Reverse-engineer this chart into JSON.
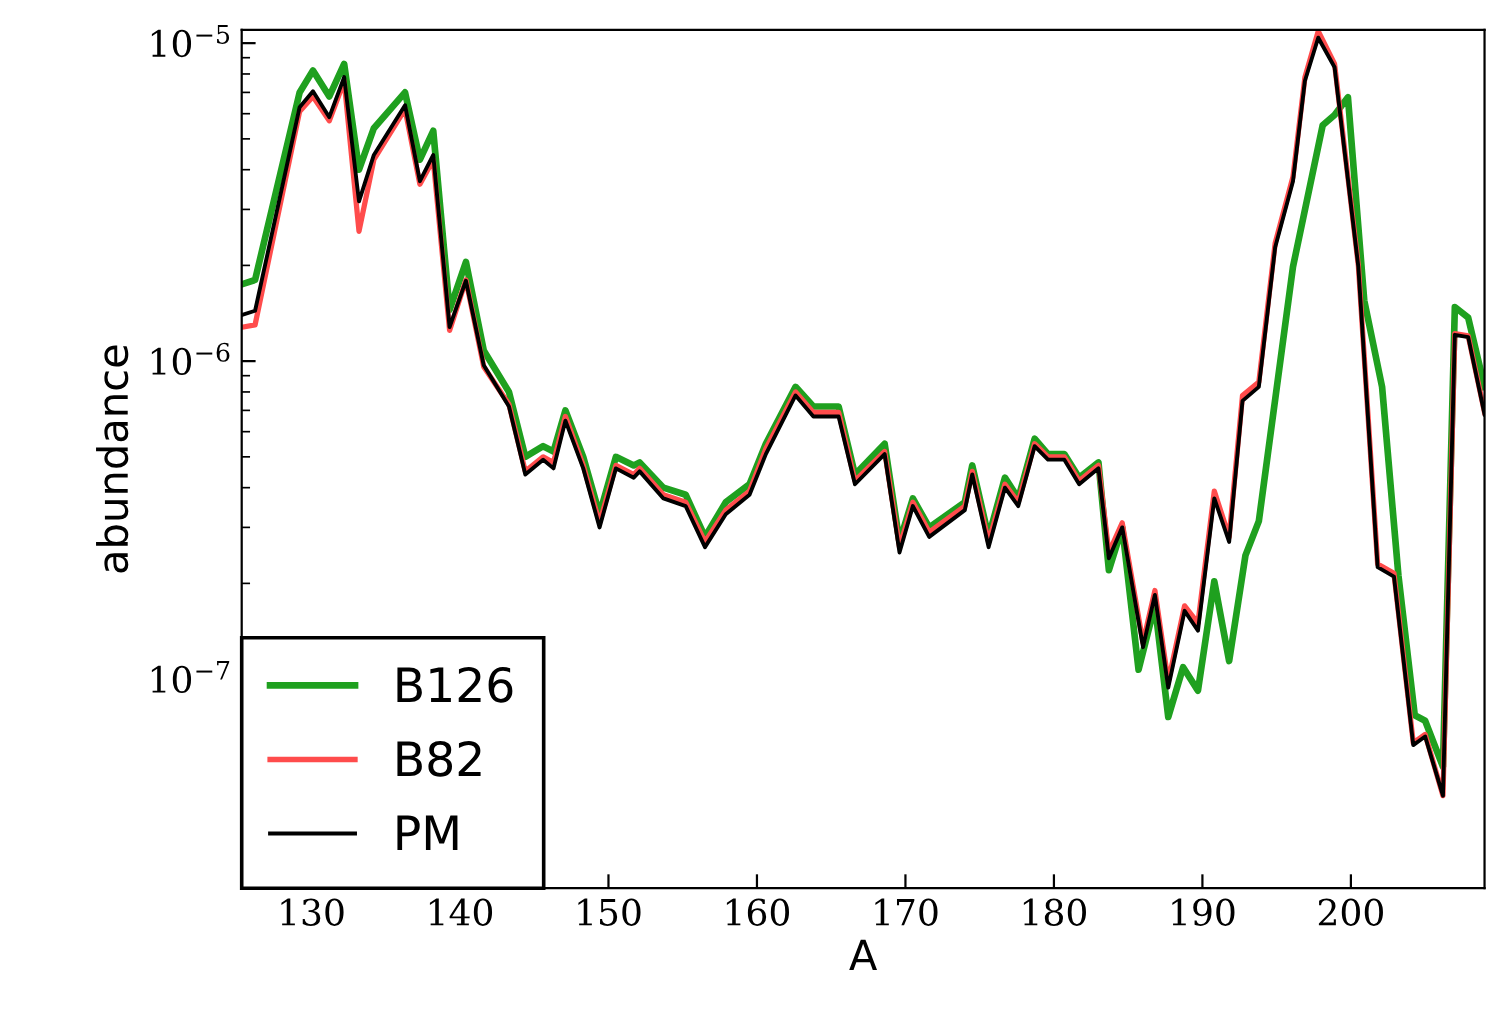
{
  "chart_data": {
    "type": "line",
    "xlabel": "A",
    "ylabel": "abundance",
    "log": "y",
    "xlim": [
      125.3,
      209
    ],
    "ylim": [
      2.2e-08,
      1.1e-05
    ],
    "xticks": [
      130,
      140,
      150,
      160,
      170,
      180,
      190,
      200
    ],
    "yticks": [
      {
        "value": 1e-07,
        "label": "10$^{−7}$"
      },
      {
        "value": 1e-06,
        "label": "10$^{−6}$"
      },
      {
        "value": 1e-05,
        "label": "10$^{−5}$"
      }
    ],
    "grid": false,
    "legend": "bottom left",
    "marker": "none",
    "line_style": "solid",
    "x": [
      125.4,
      126.2,
      129.2,
      130.1,
      131.2,
      132.2,
      133.2,
      134.2,
      136.3,
      137.3,
      138.2,
      139.3,
      140.4,
      141.6,
      143.3,
      144.4,
      145.6,
      146.3,
      147.1,
      148.3,
      149.4,
      150.5,
      151.7,
      152.1,
      153.7,
      155.2,
      156.5,
      157.9,
      159.5,
      160.6,
      162.6,
      163.8,
      165.5,
      166.6,
      168.6,
      169.6,
      170.5,
      171.6,
      174,
      174.5,
      175.6,
      176.7,
      177.6,
      178.7,
      179.6,
      180.7,
      181.7,
      183,
      183.7,
      184.6,
      186,
      186.8,
      187.7,
      188.8,
      189.7,
      190.8,
      191.8,
      192.7,
      193.8,
      194.9,
      196.1,
      196.9,
      197.8,
      198.9,
      200.5,
      201.8,
      202.9,
      204.2,
      205,
      206.2,
      207,
      207.9,
      209
    ],
    "series": [
      {
        "name": "B126",
        "color": "#1fa01f",
        "x": [
          125.4,
          126.2,
          129.2,
          130.1,
          131.2,
          132.2,
          133.2,
          134.2,
          136.3,
          137.3,
          138.2,
          139.3,
          140.4,
          141.6,
          143.3,
          144.4,
          145.6,
          146.3,
          147.1,
          148.3,
          149.4,
          150.5,
          151.7,
          152.1,
          153.7,
          155.2,
          156.5,
          157.9,
          159.5,
          160.6,
          162.6,
          163.8,
          165.5,
          166.6,
          168.6,
          169.6,
          170.5,
          171.6,
          174,
          174.5,
          175.6,
          176.7,
          177.6,
          178.7,
          179.6,
          180.7,
          181.7,
          183,
          183.7,
          184.6,
          185.7,
          186.8,
          187.7,
          188.7,
          189.7,
          190.8,
          191.8,
          192.9,
          193.8,
          196.1,
          198.1,
          198.9,
          199.8,
          200.9,
          202.1,
          203.2,
          204.3,
          205,
          206.2,
          207,
          207.9,
          209
        ],
        "values": [
          1.75e-06,
          1.8e-06,
          7e-06,
          8.2e-06,
          6.8e-06,
          8.6e-06,
          4e-06,
          5.4e-06,
          7e-06,
          4.3e-06,
          5.3e-06,
          1.45e-06,
          2.05e-06,
          1.08e-06,
          8e-07,
          5e-07,
          5.4e-07,
          5.2e-07,
          7e-07,
          5e-07,
          3.3e-07,
          5e-07,
          4.7e-07,
          4.8e-07,
          4e-07,
          3.8e-07,
          2.8e-07,
          3.6e-07,
          4.1e-07,
          5.5e-07,
          8.3e-07,
          7.2e-07,
          7.2e-07,
          4.4e-07,
          5.5e-07,
          2.7e-07,
          3.7e-07,
          3e-07,
          3.6e-07,
          4.7e-07,
          2.8e-07,
          4.3e-07,
          3.7e-07,
          5.7e-07,
          5.1e-07,
          5.1e-07,
          4.3e-07,
          4.8e-07,
          2.2e-07,
          3e-07,
          1.07e-07,
          1.71e-07,
          7.6e-08,
          1.09e-07,
          9.2e-08,
          2.03e-07,
          1.14e-07,
          2.45e-07,
          3.14e-07,
          1.98e-06,
          5.52e-06,
          5.94e-06,
          6.76e-06,
          1.55e-06,
          8.3e-07,
          2.12e-07,
          7.7e-08,
          7.4e-08,
          5.3e-08,
          1.48e-06,
          1.37e-06,
          8.3e-07
        ]
      },
      {
        "name": "B82",
        "color": "#ff4c4c",
        "values": [
          1.28e-06,
          1.3e-06,
          6.1e-06,
          6.8e-06,
          5.7e-06,
          7.6e-06,
          2.56e-06,
          4.3e-06,
          6.2e-06,
          3.6e-06,
          4.3e-06,
          1.25e-06,
          1.8e-06,
          9.6e-07,
          7.3e-07,
          4.5e-07,
          5e-07,
          4.8e-07,
          6.7e-07,
          4.7e-07,
          3.1e-07,
          4.7e-07,
          4.4e-07,
          4.6e-07,
          3.8e-07,
          3.6e-07,
          2.7e-07,
          3.4e-07,
          3.9e-07,
          5.3e-07,
          8e-07,
          6.9e-07,
          6.9e-07,
          4.2e-07,
          5.2e-07,
          2.6e-07,
          3.6e-07,
          2.9e-07,
          3.5e-07,
          4.5e-07,
          2.7e-07,
          4.1e-07,
          3.6e-07,
          5.5e-07,
          5e-07,
          5e-07,
          4.2e-07,
          4.7e-07,
          2.5e-07,
          3.1e-07,
          1.3e-07,
          1.9e-07,
          9.8e-08,
          1.7e-07,
          1.5e-07,
          3.9e-07,
          2.8e-07,
          7.8e-07,
          8.6e-07,
          2.35e-06,
          3.8e-06,
          7.8e-06,
          1.09e-05,
          8.6e-06,
          2e-06,
          2.3e-07,
          2.15e-07,
          6.3e-08,
          6.7e-08,
          4.3e-08,
          1.22e-06,
          1.2e-06,
          6.9e-07
        ]
      },
      {
        "name": "PM",
        "color": "#000000",
        "values": [
          1.4e-06,
          1.44e-06,
          6.29e-06,
          7.06e-06,
          5.85e-06,
          7.82e-06,
          3.18e-06,
          4.45e-06,
          6.38e-06,
          3.68e-06,
          4.45e-06,
          1.28e-06,
          1.79e-06,
          9.7e-07,
          7.2e-07,
          4.4e-07,
          4.9e-07,
          4.6e-07,
          6.5e-07,
          4.6e-07,
          3e-07,
          4.6e-07,
          4.3e-07,
          4.5e-07,
          3.7e-07,
          3.5e-07,
          2.6e-07,
          3.3e-07,
          3.8e-07,
          5.1e-07,
          7.8e-07,
          6.7e-07,
          6.7e-07,
          4.1e-07,
          5.1e-07,
          2.5e-07,
          3.5e-07,
          2.8e-07,
          3.4e-07,
          4.4e-07,
          2.6e-07,
          4e-07,
          3.5e-07,
          5.4e-07,
          4.9e-07,
          4.9e-07,
          4.1e-07,
          4.6e-07,
          2.4e-07,
          3e-07,
          1.26e-07,
          1.84e-07,
          9.4e-08,
          1.64e-07,
          1.42e-07,
          3.7e-07,
          2.7e-07,
          7.5e-07,
          8.3e-07,
          2.28e-06,
          3.68e-06,
          7.6e-06,
          1.04e-05,
          8.4e-06,
          1.98e-06,
          2.25e-07,
          2.1e-07,
          6.2e-08,
          6.6e-08,
          4.3e-08,
          1.21e-06,
          1.19e-06,
          6.8e-07
        ]
      }
    ]
  }
}
